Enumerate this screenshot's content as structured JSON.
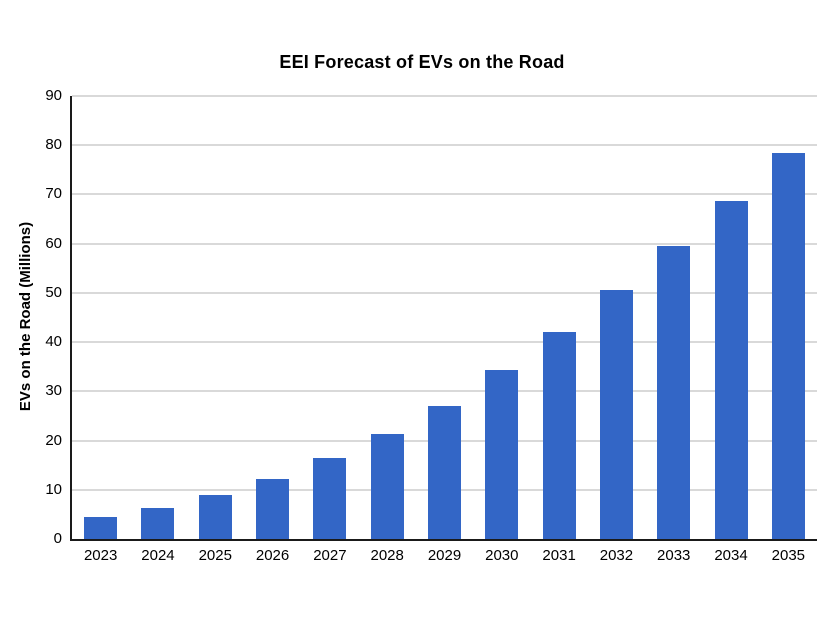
{
  "chart_data": {
    "type": "bar",
    "title": "EEI Forecast of EVs on the Road",
    "xlabel": "",
    "ylabel": "EVs on the Road (Millions)",
    "categories": [
      "2023",
      "2024",
      "2025",
      "2026",
      "2027",
      "2028",
      "2029",
      "2030",
      "2031",
      "2032",
      "2033",
      "2034",
      "2035"
    ],
    "values": [
      4.5,
      6.2,
      8.9,
      12.2,
      16.4,
      21.4,
      27.1,
      34.3,
      42.1,
      50.6,
      59.5,
      68.7,
      78.5
    ],
    "ylim": [
      0,
      90
    ],
    "ytick_step": 10,
    "yticks": [
      0,
      10,
      20,
      30,
      40,
      50,
      60,
      70,
      80,
      90
    ],
    "grid": "horizontal",
    "legend_position": "none",
    "colors": {
      "bar": "#3366C6",
      "gridline": "#D9D9D9",
      "axis": "#1A1A1A",
      "text": "#000000",
      "background": "#FFFFFF"
    }
  }
}
